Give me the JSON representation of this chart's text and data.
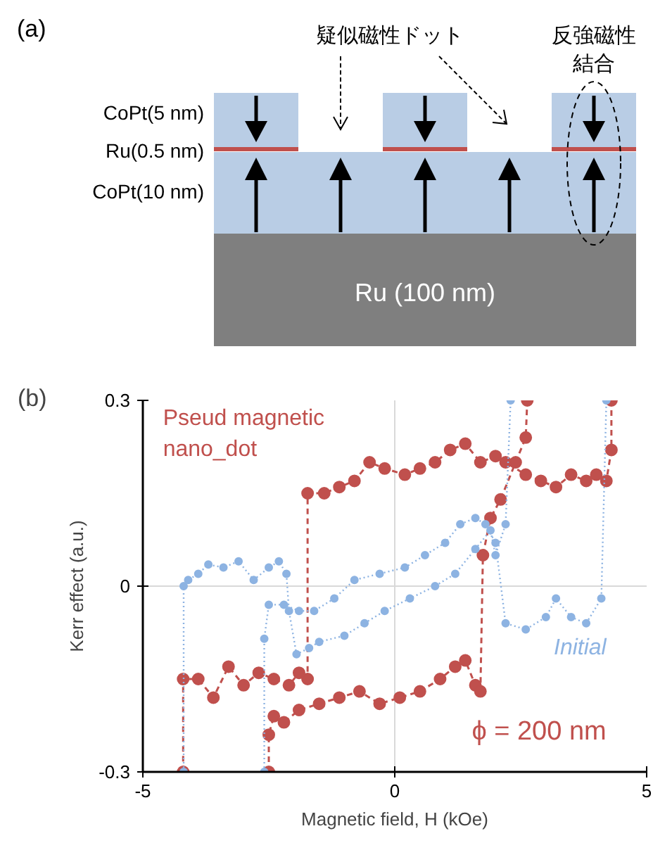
{
  "chart_data": [
    {
      "type": "other",
      "title": "(a)",
      "annotations": [
        "CoPt(5 nm)",
        "Ru(0.5 nm)",
        "CoPt(10 nm)",
        "Ru (100 nm)",
        "疑似磁性ドット",
        "反強磁性",
        "結合"
      ]
    },
    {
      "type": "line",
      "title": "(b)",
      "xlabel": "Magnetic field, H (kOe)",
      "ylabel": "Kerr effect (a.u.)",
      "xlim": [
        -5,
        5
      ],
      "xticks": [
        -5,
        0,
        5
      ],
      "ylim": [
        -0.3,
        0.3
      ],
      "yticks": [
        -0.3,
        0,
        0.3
      ],
      "grid": true,
      "marker": "circle",
      "annotations": [
        "ϕ = 200 nm"
      ],
      "series": [
        {
          "name": "Pseud magnetic\nnano_dot",
          "color": "#c0504d",
          "line_style": "dashed",
          "x": [
            4.3,
            4.3,
            4.2,
            4.0,
            3.8,
            3.5,
            3.2,
            2.9,
            2.6,
            2.2,
            2.0,
            1.7,
            1.4,
            1.1,
            0.8,
            0.5,
            0.2,
            -0.2,
            -0.5,
            -0.8,
            -1.1,
            -1.4,
            -1.73,
            -1.73,
            -1.9,
            -2.1,
            -2.4,
            -2.7,
            -3.0,
            -3.3,
            -3.6,
            -3.9,
            -4.2,
            -4.2
          ],
          "values": [
            0.3,
            0.22,
            0.17,
            0.18,
            0.17,
            0.18,
            0.16,
            0.17,
            0.18,
            0.2,
            0.21,
            0.2,
            0.23,
            0.22,
            0.2,
            0.19,
            0.18,
            0.19,
            0.2,
            0.17,
            0.16,
            0.15,
            0.15,
            -0.15,
            -0.14,
            -0.16,
            -0.15,
            -0.14,
            -0.16,
            -0.13,
            -0.18,
            -0.15,
            -0.15,
            -0.3
          ]
        },
        {
          "color": "#c0504d",
          "line_style": "dashed",
          "x": [
            -2.5,
            -2.5,
            -2.4,
            -2.2,
            -1.9,
            -1.5,
            -1.1,
            -0.7,
            -0.3,
            0.1,
            0.5,
            0.9,
            1.2,
            1.4,
            1.6,
            1.7,
            1.75,
            1.9,
            2.1,
            2.4,
            2.6,
            2.63
          ],
          "values": [
            -0.3,
            -0.24,
            -0.21,
            -0.22,
            -0.2,
            -0.19,
            -0.18,
            -0.17,
            -0.19,
            -0.18,
            -0.17,
            -0.15,
            -0.13,
            -0.12,
            -0.16,
            -0.17,
            0.05,
            0.11,
            0.14,
            0.2,
            0.24,
            0.3
          ]
        },
        {
          "name": "Initial",
          "color": "#8db3e2",
          "line_style": "dotted",
          "x": [
            -4.19,
            -4.19,
            -4.1,
            -3.9,
            -3.7,
            -3.4,
            -3.1,
            -2.8,
            -2.5,
            -2.3,
            -2.15,
            -2.1,
            -1.95,
            -1.7,
            -1.5,
            -1.0,
            -0.6,
            -0.2,
            0.3,
            0.8,
            1.2,
            1.6,
            1.9,
            2.0,
            2.2,
            2.3
          ],
          "values": [
            -0.3,
            0.0,
            0.01,
            0.02,
            0.035,
            0.03,
            0.04,
            0.01,
            0.03,
            0.04,
            0.02,
            -0.04,
            -0.11,
            -0.1,
            -0.09,
            -0.08,
            -0.06,
            -0.04,
            -0.02,
            0.0,
            0.02,
            0.06,
            0.09,
            0.05,
            0.1,
            0.3
          ]
        },
        {
          "color": "#8db3e2",
          "line_style": "dotted",
          "x": [
            -2.59,
            -2.59,
            -2.5,
            -2.2,
            -1.9,
            -1.6,
            -1.2,
            -0.8,
            -0.3,
            0.2,
            0.6,
            1.0,
            1.3,
            1.6,
            1.8,
            2.0,
            2.2,
            2.6,
            3.0,
            3.2,
            3.5,
            3.8,
            4.1,
            4.2
          ],
          "values": [
            -0.3,
            -0.085,
            -0.03,
            -0.03,
            -0.04,
            -0.04,
            -0.02,
            0.01,
            0.02,
            0.03,
            0.05,
            0.07,
            0.1,
            0.11,
            0.1,
            0.07,
            -0.06,
            -0.07,
            -0.05,
            -0.02,
            -0.05,
            -0.06,
            -0.02,
            0.3
          ]
        }
      ]
    }
  ]
}
